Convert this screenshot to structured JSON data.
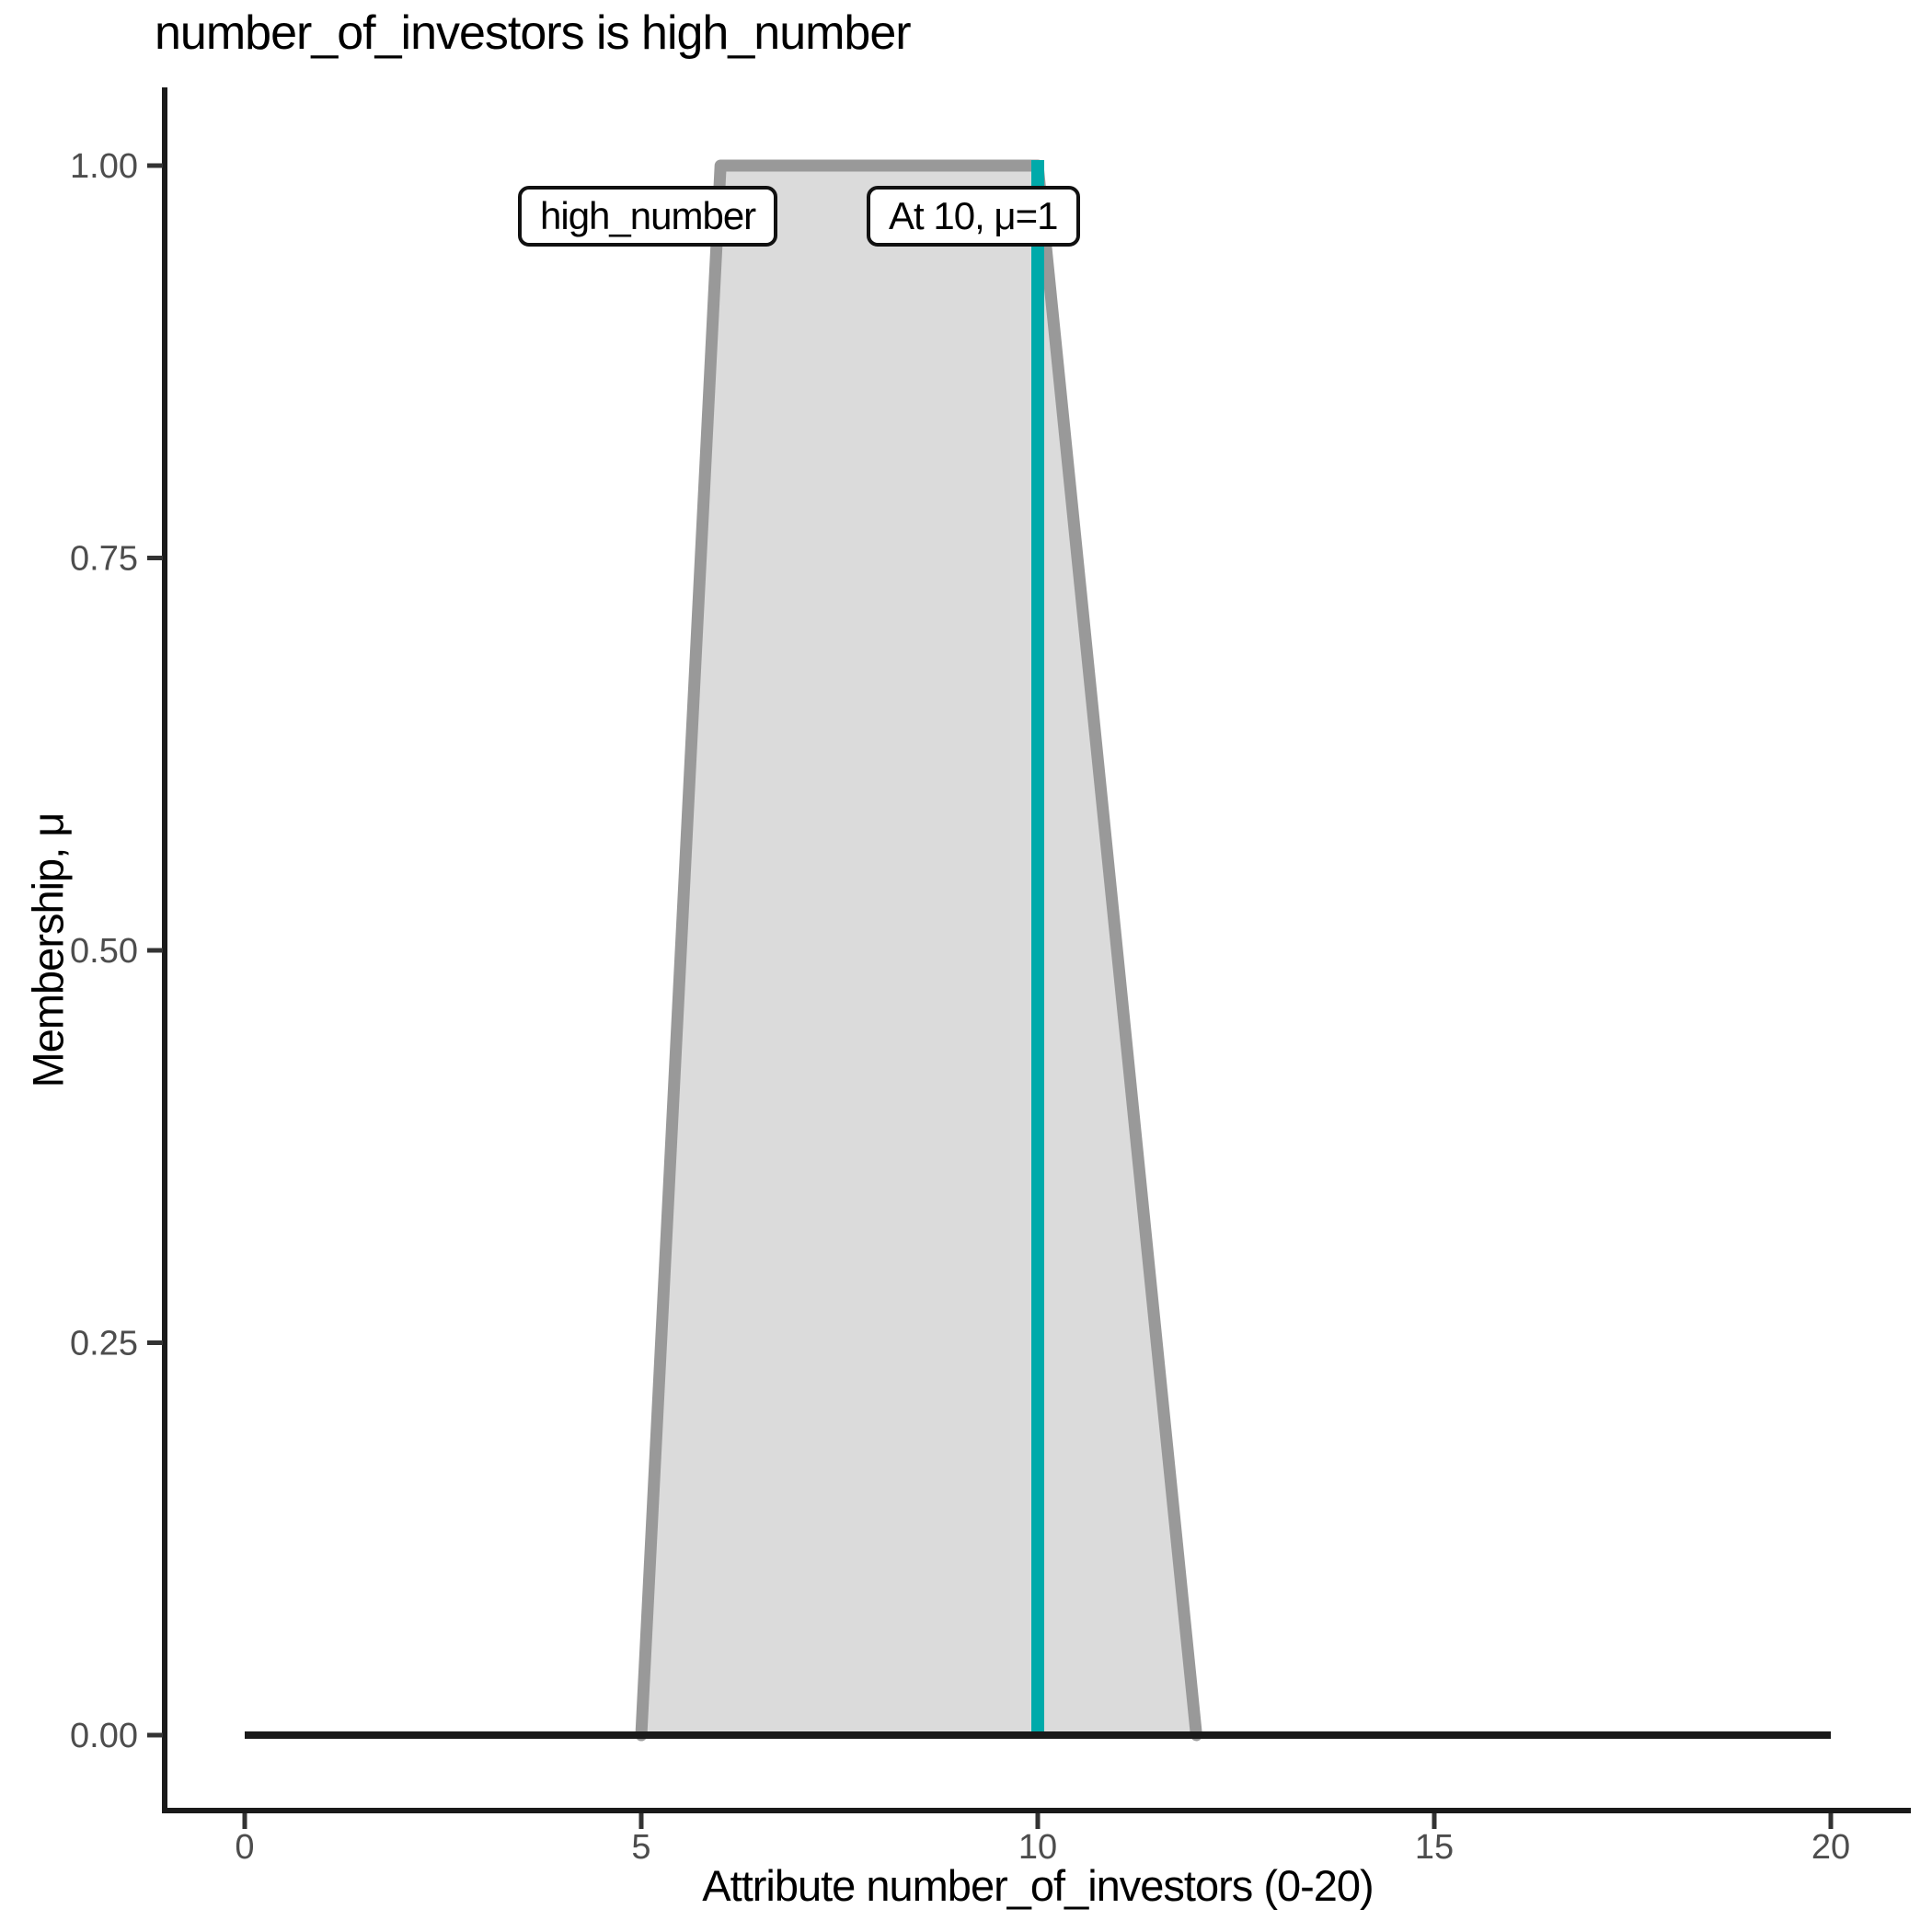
{
  "chart_data": {
    "type": "area",
    "title": "number_of_investors is high_number",
    "xlabel": "Attribute number_of_investors (0-20)",
    "ylabel": "Membership, μ",
    "xlim": [
      0,
      20
    ],
    "ylim": [
      0,
      1
    ],
    "grid": false,
    "legend_position": "none",
    "x_ticks": [
      {
        "value": 0,
        "label": "0"
      },
      {
        "value": 5,
        "label": "5"
      },
      {
        "value": 10,
        "label": "10"
      },
      {
        "value": 15,
        "label": "15"
      },
      {
        "value": 20,
        "label": "20"
      }
    ],
    "y_ticks": [
      {
        "value": 0,
        "label": "0.00"
      },
      {
        "value": 0.25,
        "label": "0.25"
      },
      {
        "value": 0.5,
        "label": "0.50"
      },
      {
        "value": 0.75,
        "label": "0.75"
      },
      {
        "value": 1,
        "label": "1.00"
      }
    ],
    "series": [
      {
        "name": "high_number",
        "shape": "trapezoid",
        "points_x_mu": [
          [
            5,
            0
          ],
          [
            6,
            1
          ],
          [
            10,
            1
          ],
          [
            12,
            0
          ]
        ],
        "fill": "#DBDBDB",
        "stroke": "#999999"
      }
    ],
    "baseline_segment": {
      "mu": 0,
      "x_from": 0,
      "x_to": 20,
      "color": "#1A1A1A"
    },
    "marker_line": {
      "x": 10,
      "mu": 1,
      "color": "#00AAAA"
    },
    "annotations": [
      {
        "id": "set-label",
        "text": "high_number"
      },
      {
        "id": "marker-label",
        "text": "At 10, μ=1"
      }
    ]
  },
  "colors": {
    "background": "#FFFFFF",
    "axis_line": "#1A1A1A",
    "tick_mark": "#333333",
    "tick_label": "#4D4D4D",
    "title_text": "#000000",
    "area_fill": "#DBDBDB",
    "area_outline": "#999999",
    "marker_line": "#00AAAA",
    "baseline": "#1A1A1A"
  }
}
